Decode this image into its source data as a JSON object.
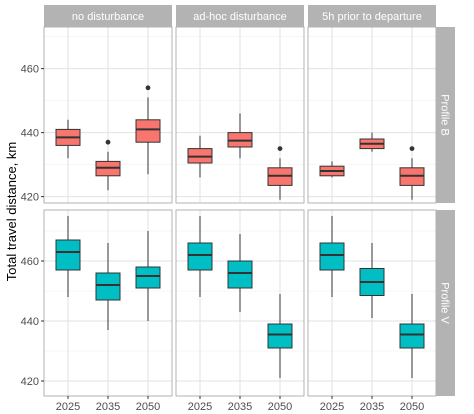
{
  "chart_data": {
    "type": "boxplot",
    "ylabel": "Total travel distance, km",
    "xlabel": "",
    "columns": [
      "no disturbance",
      "ad-hoc disturbance",
      "5h prior to departure"
    ],
    "rows": [
      "Profile B",
      "Profile V"
    ],
    "categories": [
      "2025",
      "2035",
      "2050"
    ],
    "colors": {
      "Profile B": "#f8766d",
      "Profile V": "#00bfc4"
    },
    "row_scales": [
      {
        "ylim": [
          418,
          473
        ],
        "ticks": [
          420,
          440,
          460
        ]
      },
      {
        "ylim": [
          415,
          477
        ],
        "ticks": [
          420,
          440,
          460
        ]
      }
    ],
    "panels": [
      {
        "row": "Profile B",
        "column": "no disturbance",
        "boxes": [
          {
            "category": "2025",
            "lower_whisker": 432,
            "q1": 436,
            "median": 438.5,
            "q3": 441,
            "upper_whisker": 444,
            "outliers": []
          },
          {
            "category": "2035",
            "lower_whisker": 422,
            "q1": 426.5,
            "median": 429,
            "q3": 431,
            "upper_whisker": 434,
            "outliers": [
              437
            ]
          },
          {
            "category": "2050",
            "lower_whisker": 427,
            "q1": 437,
            "median": 441,
            "q3": 444,
            "upper_whisker": 451,
            "outliers": [
              454
            ]
          }
        ]
      },
      {
        "row": "Profile B",
        "column": "ad-hoc disturbance",
        "boxes": [
          {
            "category": "2025",
            "lower_whisker": 426,
            "q1": 430.5,
            "median": 432.5,
            "q3": 435,
            "upper_whisker": 439,
            "outliers": []
          },
          {
            "category": "2035",
            "lower_whisker": 432,
            "q1": 435.5,
            "median": 437.5,
            "q3": 440,
            "upper_whisker": 446,
            "outliers": []
          },
          {
            "category": "2050",
            "lower_whisker": 419,
            "q1": 423.5,
            "median": 426.5,
            "q3": 429,
            "upper_whisker": 432,
            "outliers": [
              435
            ]
          }
        ]
      },
      {
        "row": "Profile B",
        "column": "5h prior to departure",
        "boxes": [
          {
            "category": "2025",
            "lower_whisker": 426,
            "q1": 426.5,
            "median": 428,
            "q3": 429.5,
            "upper_whisker": 431,
            "outliers": []
          },
          {
            "category": "2035",
            "lower_whisker": 434,
            "q1": 435,
            "median": 436.5,
            "q3": 438,
            "upper_whisker": 440,
            "outliers": []
          },
          {
            "category": "2050",
            "lower_whisker": 419,
            "q1": 423.5,
            "median": 426.5,
            "q3": 429,
            "upper_whisker": 432,
            "outliers": [
              435
            ]
          }
        ]
      },
      {
        "row": "Profile V",
        "column": "no disturbance",
        "boxes": [
          {
            "category": "2025",
            "lower_whisker": 448,
            "q1": 457,
            "median": 463,
            "q3": 467,
            "upper_whisker": 475,
            "outliers": []
          },
          {
            "category": "2035",
            "lower_whisker": 437,
            "q1": 447,
            "median": 452,
            "q3": 456,
            "upper_whisker": 466,
            "outliers": []
          },
          {
            "category": "2050",
            "lower_whisker": 440,
            "q1": 451,
            "median": 455,
            "q3": 458,
            "upper_whisker": 470,
            "outliers": []
          }
        ]
      },
      {
        "row": "Profile V",
        "column": "ad-hoc disturbance",
        "boxes": [
          {
            "category": "2025",
            "lower_whisker": 448,
            "q1": 457,
            "median": 462,
            "q3": 466,
            "upper_whisker": 475,
            "outliers": []
          },
          {
            "category": "2035",
            "lower_whisker": 443,
            "q1": 451,
            "median": 456,
            "q3": 460,
            "upper_whisker": 469,
            "outliers": []
          },
          {
            "category": "2050",
            "lower_whisker": 421,
            "q1": 431,
            "median": 435.5,
            "q3": 439,
            "upper_whisker": 449,
            "outliers": []
          }
        ]
      },
      {
        "row": "Profile V",
        "column": "5h prior to departure",
        "boxes": [
          {
            "category": "2025",
            "lower_whisker": 448,
            "q1": 457,
            "median": 462,
            "q3": 466,
            "upper_whisker": 475,
            "outliers": []
          },
          {
            "category": "2035",
            "lower_whisker": 441,
            "q1": 448.5,
            "median": 453,
            "q3": 457.5,
            "upper_whisker": 466,
            "outliers": []
          },
          {
            "category": "2050",
            "lower_whisker": 421,
            "q1": 431,
            "median": 435.5,
            "q3": 439,
            "upper_whisker": 449,
            "outliers": []
          }
        ]
      }
    ],
    "grid": true,
    "legend": "none"
  }
}
